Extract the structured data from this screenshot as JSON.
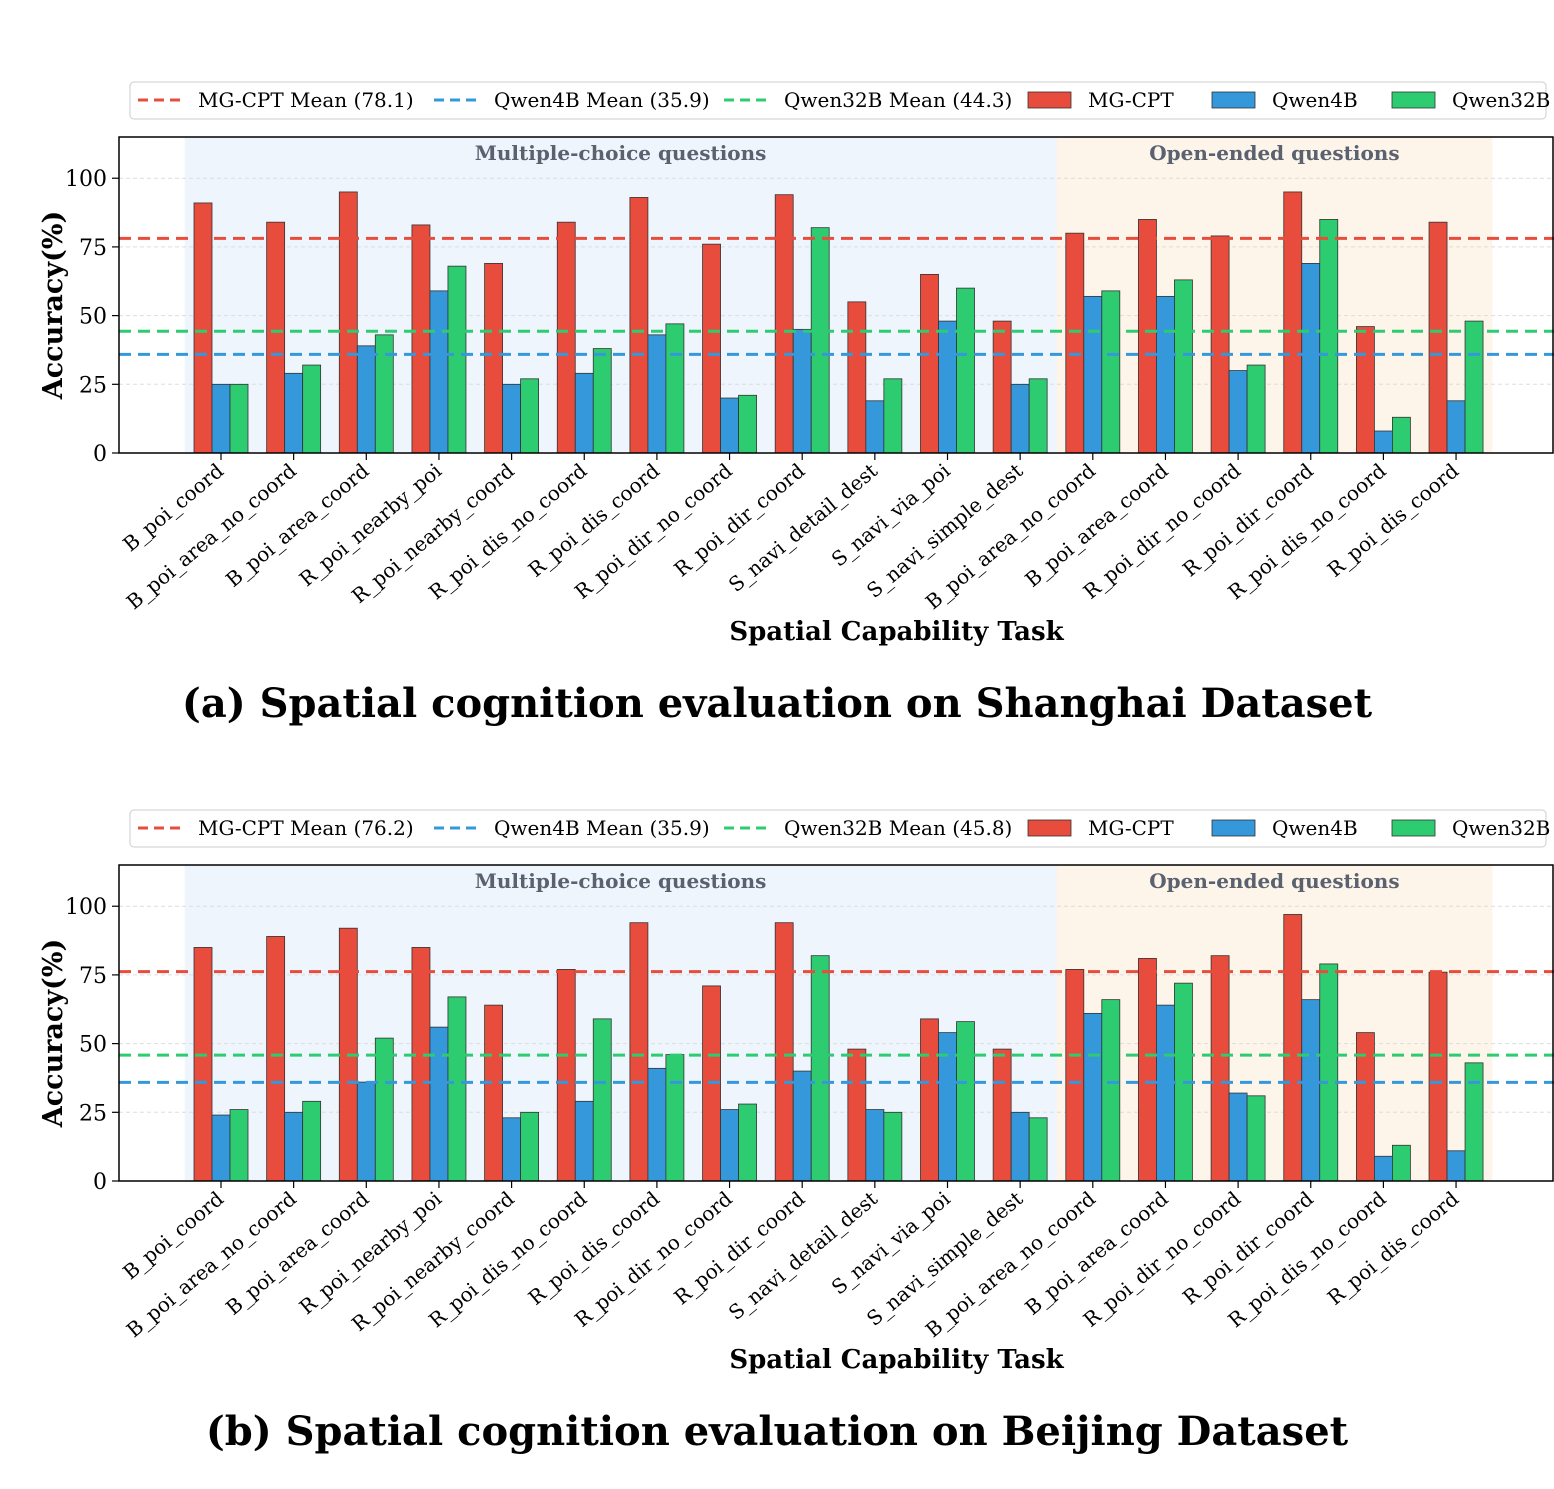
{
  "chart_data": [
    {
      "type": "bar",
      "caption": "(a) Spatial cognition evaluation on Shanghai Dataset",
      "xlabel": "Spatial Capability Task",
      "ylabel": "Accuracy(%)",
      "ylim": [
        0,
        115
      ],
      "yticks": [
        0,
        25,
        50,
        75,
        100
      ],
      "grid": true,
      "legend_position": "top",
      "categories": [
        "B_poi_coord",
        "B_poi_area_no_coord",
        "B_poi_area_coord",
        "R_poi_nearby_poi",
        "R_poi_nearby_coord",
        "R_poi_dis_no_coord",
        "R_poi_dis_coord",
        "R_poi_dir_no_coord",
        "R_poi_dir_coord",
        "S_navi_detail_dest",
        "S_navi_via_poi",
        "S_navi_simple_dest",
        "B_poi_area_no_coord",
        "B_poi_area_coord",
        "R_poi_dir_no_coord",
        "R_poi_dir_coord",
        "R_poi_dis_no_coord",
        "R_poi_dis_coord"
      ],
      "regions": [
        {
          "label": "Multiple-choice questions",
          "from_index": 0,
          "to_index": 11,
          "color": "#eef5fc"
        },
        {
          "label": "Open-ended questions",
          "from_index": 12,
          "to_index": 17,
          "color": "#fdf4ea"
        }
      ],
      "series": [
        {
          "name": "MG-CPT",
          "color": "#e74c3c",
          "values": [
            91,
            84,
            95,
            83,
            69,
            84,
            93,
            76,
            94,
            55,
            65,
            48,
            80,
            85,
            79,
            95,
            46,
            84
          ]
        },
        {
          "name": "Qwen4B",
          "color": "#3498db",
          "values": [
            25,
            29,
            39,
            59,
            25,
            29,
            43,
            20,
            45,
            19,
            48,
            25,
            57,
            57,
            30,
            69,
            8,
            19
          ]
        },
        {
          "name": "Qwen32B",
          "color": "#2ecc71",
          "values": [
            25,
            32,
            43,
            68,
            27,
            38,
            47,
            21,
            82,
            27,
            60,
            27,
            59,
            63,
            32,
            85,
            13,
            48
          ]
        }
      ],
      "mean_lines": [
        {
          "label": "MG-CPT Mean (78.1)",
          "value": 78.1,
          "color": "#e74c3c"
        },
        {
          "label": "Qwen4B Mean (35.9)",
          "value": 35.9,
          "color": "#3498db"
        },
        {
          "label": "Qwen32B Mean (44.3)",
          "value": 44.3,
          "color": "#2ecc71"
        }
      ]
    },
    {
      "type": "bar",
      "caption": "(b) Spatial cognition evaluation on Beijing Dataset",
      "xlabel": "Spatial Capability Task",
      "ylabel": "Accuracy(%)",
      "ylim": [
        0,
        115
      ],
      "yticks": [
        0,
        25,
        50,
        75,
        100
      ],
      "grid": true,
      "legend_position": "top",
      "categories": [
        "B_poi_coord",
        "B_poi_area_no_coord",
        "B_poi_area_coord",
        "R_poi_nearby_poi",
        "R_poi_nearby_coord",
        "R_poi_dis_no_coord",
        "R_poi_dis_coord",
        "R_poi_dir_no_coord",
        "R_poi_dir_coord",
        "S_navi_detail_dest",
        "S_navi_via_poi",
        "S_navi_simple_dest",
        "B_poi_area_no_coord",
        "B_poi_area_coord",
        "R_poi_dir_no_coord",
        "R_poi_dir_coord",
        "R_poi_dis_no_coord",
        "R_poi_dis_coord"
      ],
      "regions": [
        {
          "label": "Multiple-choice questions",
          "from_index": 0,
          "to_index": 11,
          "color": "#eef5fc"
        },
        {
          "label": "Open-ended questions",
          "from_index": 12,
          "to_index": 17,
          "color": "#fdf4ea"
        }
      ],
      "series": [
        {
          "name": "MG-CPT",
          "color": "#e74c3c",
          "values": [
            85,
            89,
            92,
            85,
            64,
            77,
            94,
            71,
            94,
            48,
            59,
            48,
            77,
            81,
            82,
            97,
            54,
            76
          ]
        },
        {
          "name": "Qwen4B",
          "color": "#3498db",
          "values": [
            24,
            25,
            36,
            56,
            23,
            29,
            41,
            26,
            40,
            26,
            54,
            25,
            61,
            64,
            32,
            66,
            9,
            11
          ]
        },
        {
          "name": "Qwen32B",
          "color": "#2ecc71",
          "values": [
            26,
            29,
            52,
            67,
            25,
            59,
            46,
            28,
            82,
            25,
            58,
            23,
            66,
            72,
            31,
            79,
            13,
            43
          ]
        }
      ],
      "mean_lines": [
        {
          "label": "MG-CPT Mean (76.2)",
          "value": 76.2,
          "color": "#e74c3c"
        },
        {
          "label": "Qwen4B Mean (35.9)",
          "value": 35.9,
          "color": "#3498db"
        },
        {
          "label": "Qwen32B Mean (45.8)",
          "value": 45.8,
          "color": "#2ecc71"
        }
      ]
    }
  ]
}
